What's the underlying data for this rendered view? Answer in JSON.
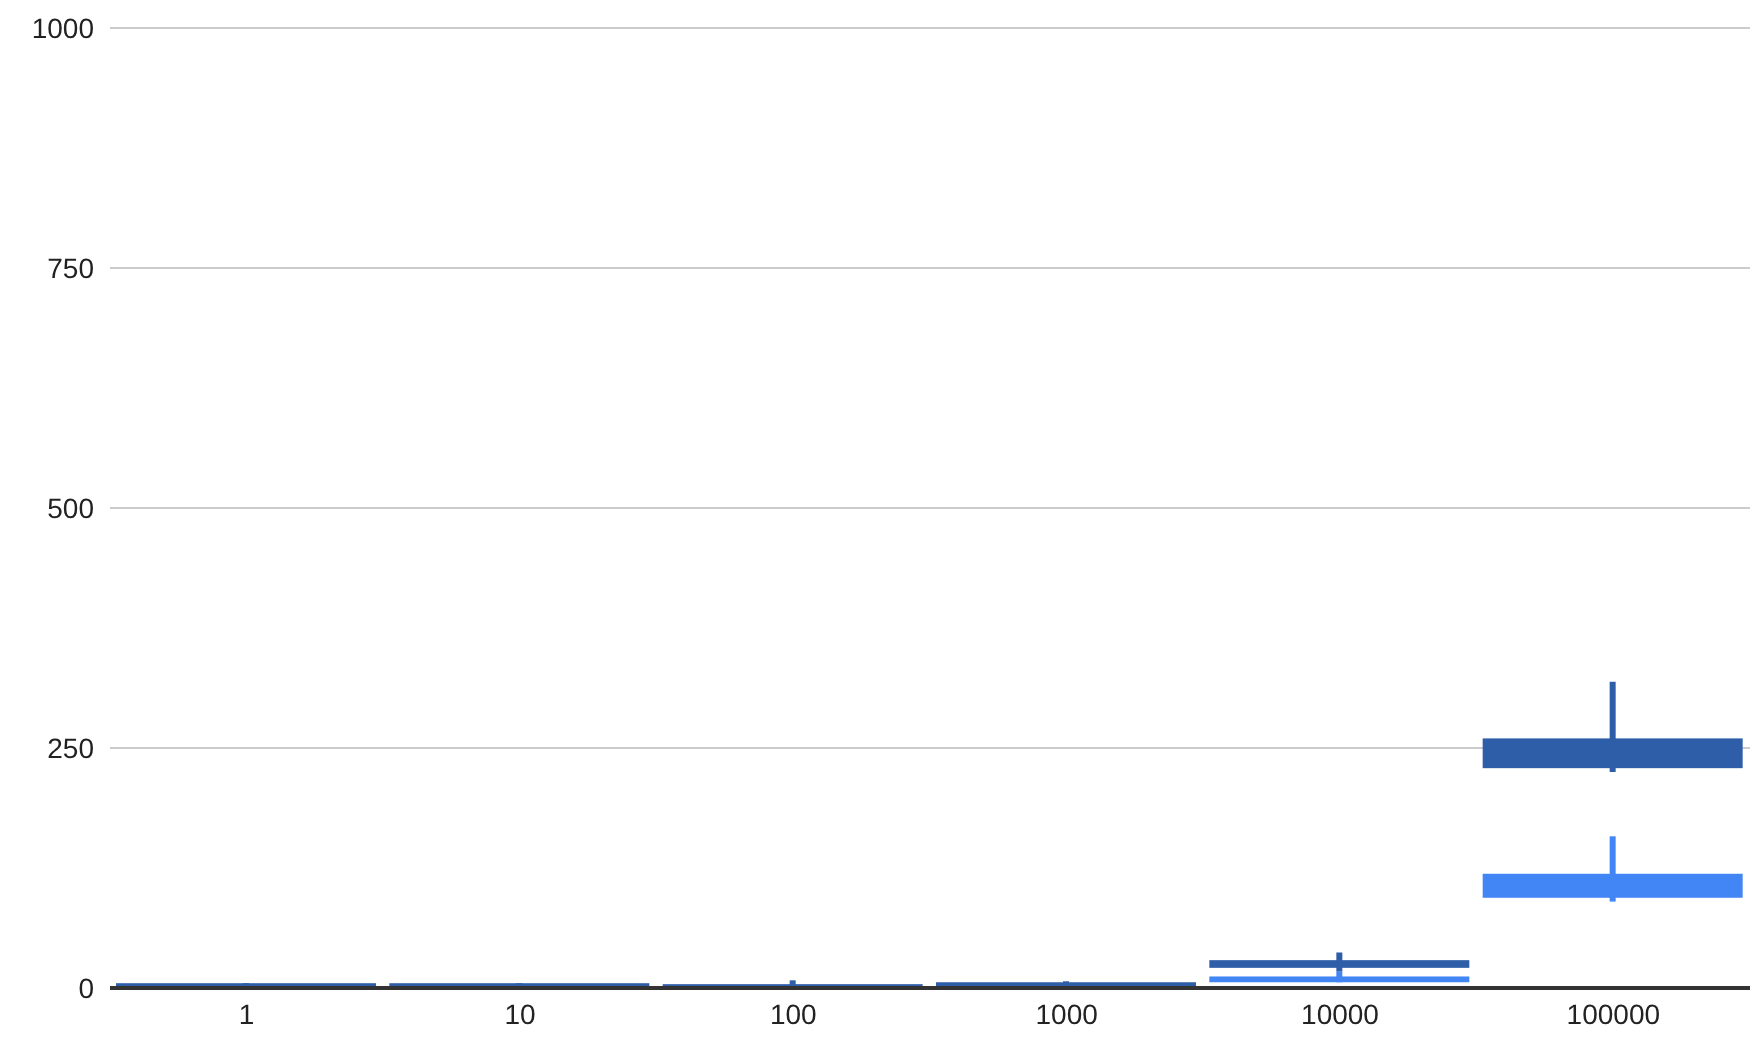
{
  "chart_data": {
    "type": "candlestick",
    "categories": [
      "1",
      "10",
      "100",
      "1000",
      "10000",
      "100000"
    ],
    "series": [
      {
        "color": "#2f5ea8",
        "ohlc": [
          [
            1,
            5,
            1,
            5
          ],
          [
            1,
            5,
            1,
            5
          ],
          [
            2,
            8,
            1,
            4
          ],
          [
            2,
            7,
            1,
            6
          ],
          [
            21,
            37,
            17,
            29
          ],
          [
            229,
            319,
            225,
            260
          ]
        ]
      },
      {
        "color": "#4285f4",
        "ohlc": [
          null,
          null,
          null,
          null,
          [
            6,
            17,
            6,
            12
          ],
          [
            94,
            158,
            90,
            119
          ]
        ]
      }
    ],
    "ylim": [
      0,
      1000
    ],
    "yticks": [
      0,
      250,
      500,
      750,
      1000
    ],
    "grid": "y"
  }
}
